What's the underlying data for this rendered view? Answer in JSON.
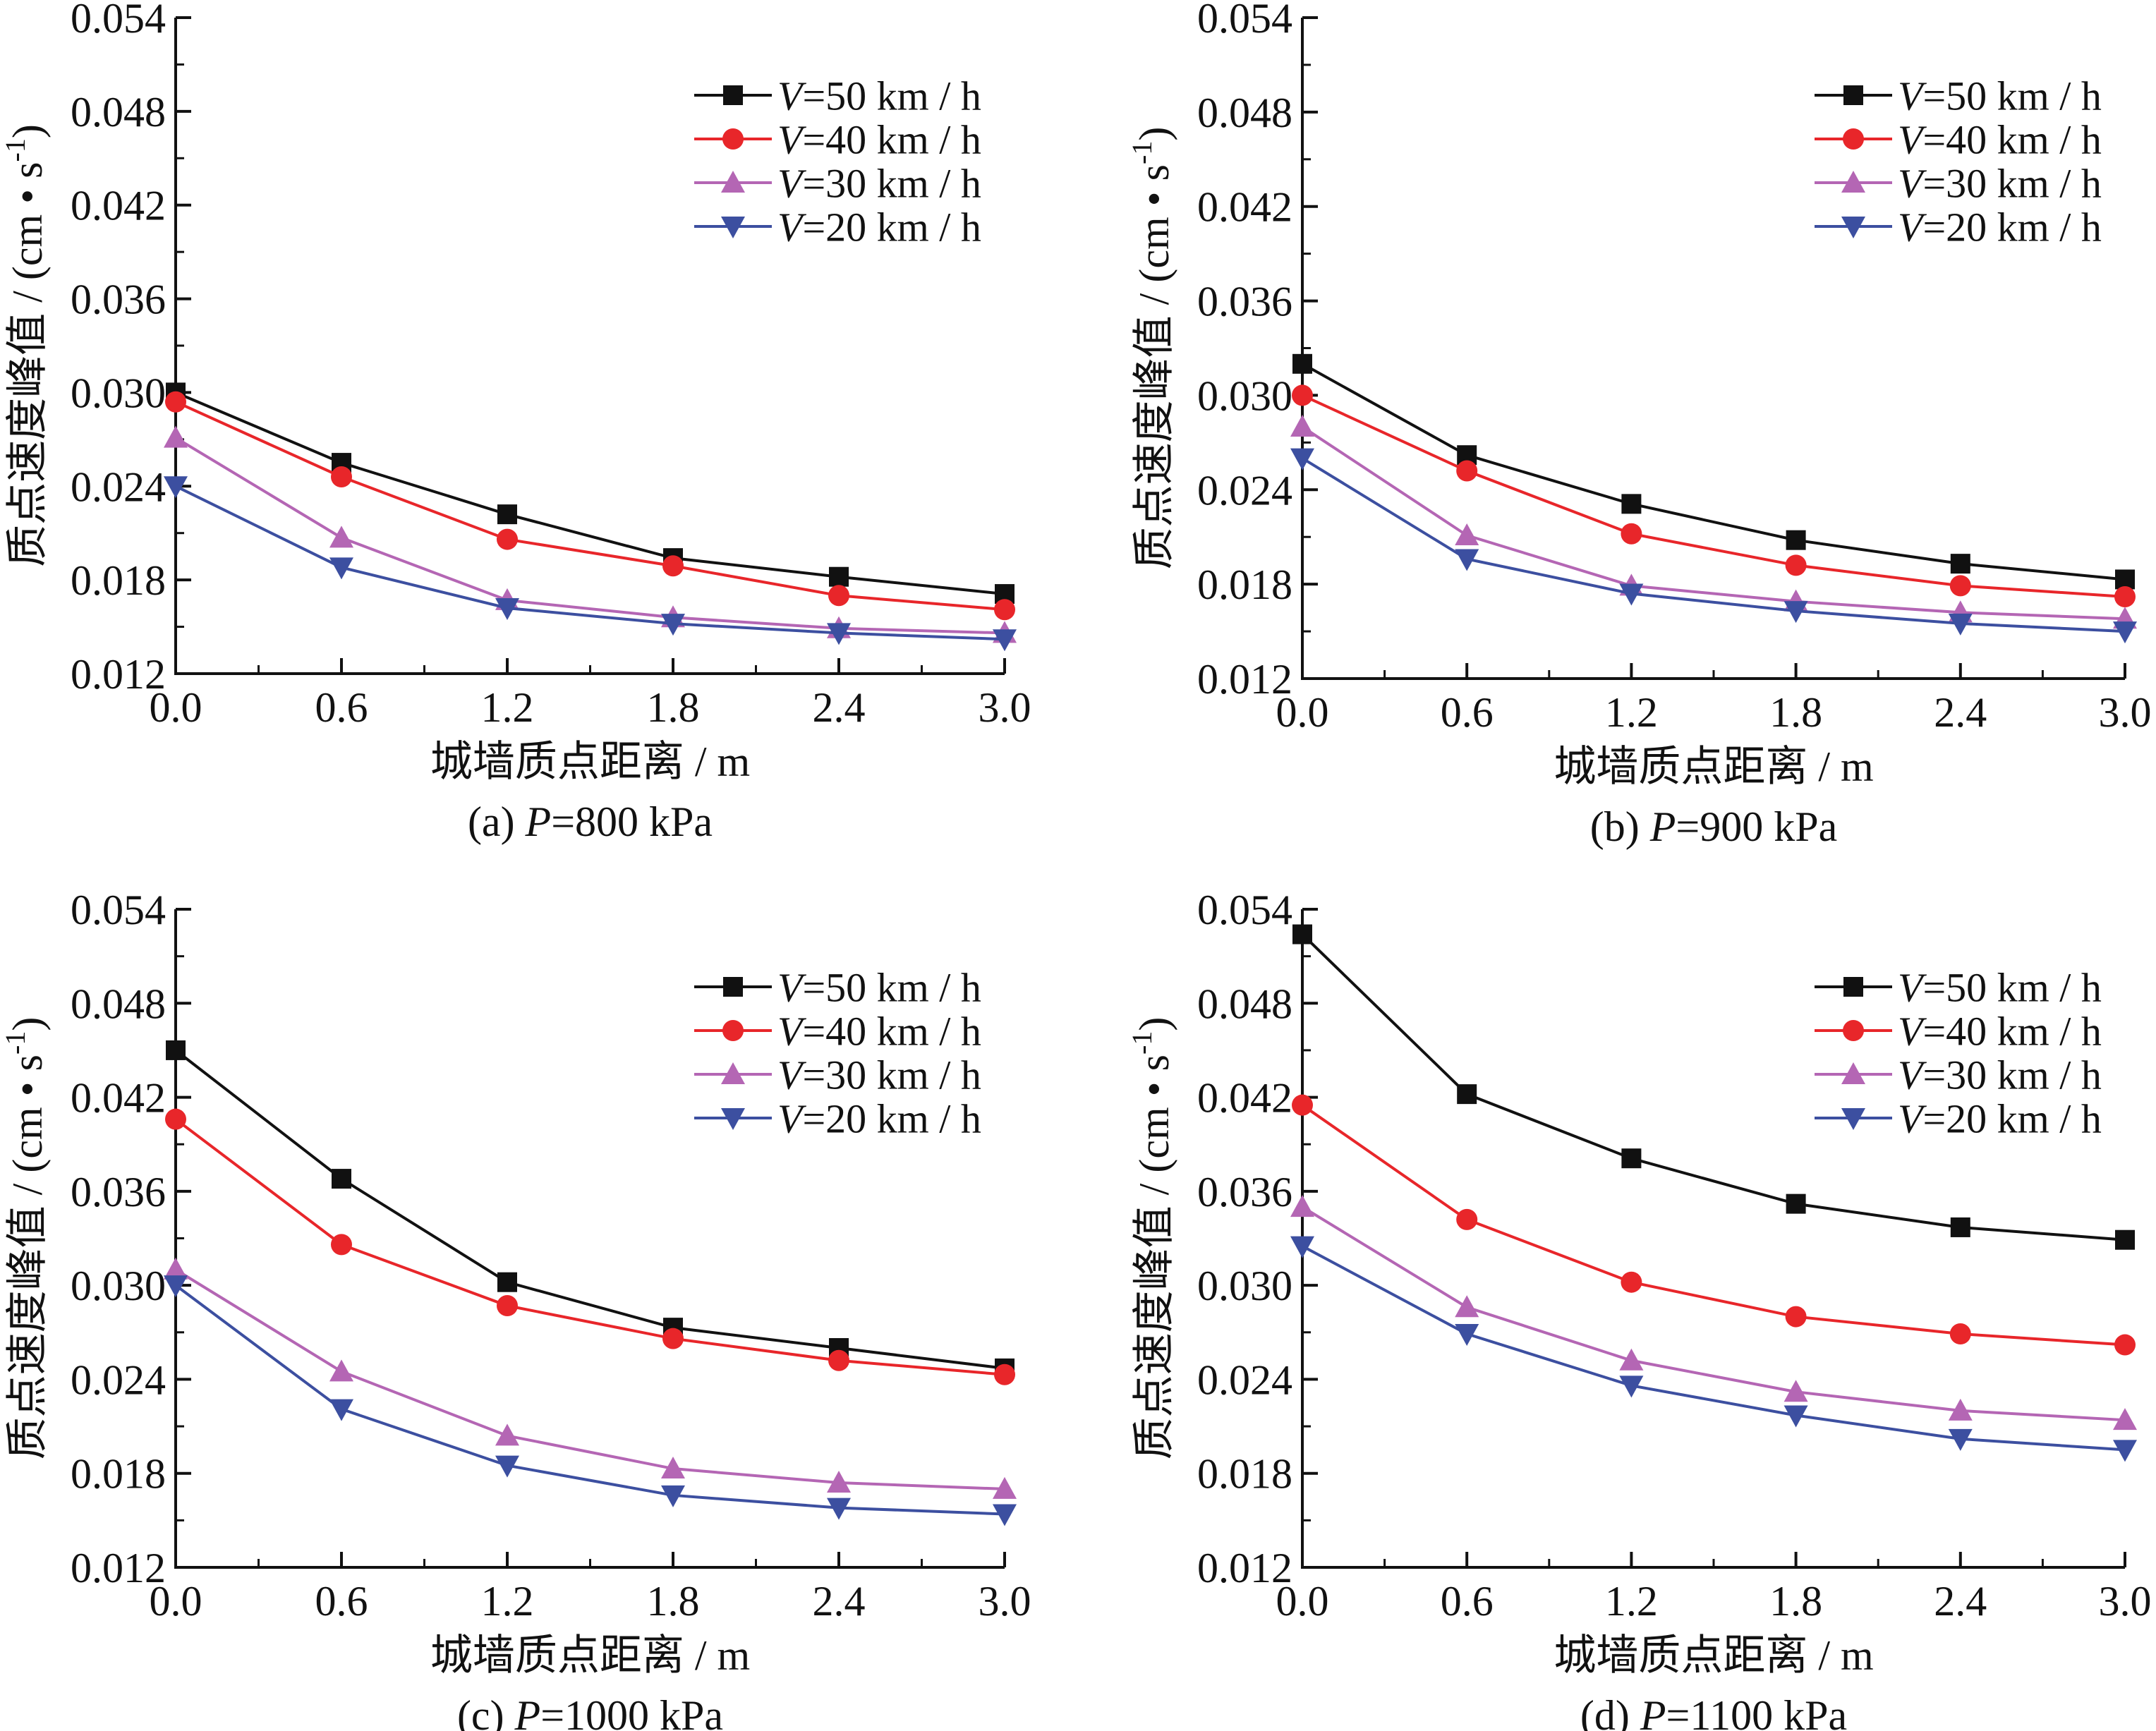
{
  "figure": {
    "background": "#ffffff",
    "axis_color": "#111111"
  },
  "chart_data": [
    {
      "type": "line",
      "title": "",
      "caption": "(a) P=800 kPa",
      "caption_prefix": "(a) ",
      "caption_var": "P",
      "caption_value": "=800 kPa",
      "xlabel": "城墙质点距离 / m",
      "ylabel": "质点速度峰值 / (cm • s⁻¹)",
      "ylabel_main": "质点速度峰值 / (cm • s",
      "ylabel_sup": "-1",
      "ylabel_close": ")",
      "xlim": [
        0,
        3
      ],
      "ylim": [
        0.012,
        0.054
      ],
      "x_ticks": [
        "0.0",
        "0.6",
        "1.2",
        "1.8",
        "2.4",
        "3.0"
      ],
      "y_ticks": [
        "0.012",
        "0.018",
        "0.024",
        "0.030",
        "0.036",
        "0.042",
        "0.048",
        "0.054"
      ],
      "grid": false,
      "legend_position": "top-right",
      "x": [
        0,
        0.6,
        1.2,
        1.8,
        2.4,
        3.0
      ],
      "series": [
        {
          "name": "V=50 km / h",
          "var": "V",
          "rest": "=50 km / h",
          "color": "#111111",
          "marker": "square",
          "values": [
            0.03,
            0.0255,
            0.0222,
            0.0194,
            0.0182,
            0.0171
          ]
        },
        {
          "name": "V=40 km / h",
          "var": "V",
          "rest": "=40 km / h",
          "color": "#e8262a",
          "marker": "circle",
          "values": [
            0.0294,
            0.0246,
            0.0206,
            0.0189,
            0.017,
            0.0161
          ]
        },
        {
          "name": "V=30 km / h",
          "var": "V",
          "rest": "=30 km / h",
          "color": "#b466b4",
          "marker": "triangle-up",
          "values": [
            0.0271,
            0.0207,
            0.0167,
            0.0156,
            0.0149,
            0.0146
          ]
        },
        {
          "name": "V=20 km / h",
          "var": "V",
          "rest": "=20 km / h",
          "color": "#3c4fa0",
          "marker": "triangle-down",
          "values": [
            0.024,
            0.0188,
            0.0162,
            0.0152,
            0.0146,
            0.0142
          ]
        }
      ]
    },
    {
      "type": "line",
      "title": "",
      "caption": "(b) P=900 kPa",
      "caption_prefix": "(b) ",
      "caption_var": "P",
      "caption_value": "=900 kPa",
      "xlabel": "城墙质点距离 / m",
      "ylabel": "质点速度峰值 / (cm • s⁻¹)",
      "ylabel_main": "质点速度峰值 / (cm • s",
      "ylabel_sup": "-1",
      "ylabel_close": ")",
      "xlim": [
        0,
        3
      ],
      "ylim": [
        0.012,
        0.054
      ],
      "x_ticks": [
        "0.0",
        "0.6",
        "1.2",
        "1.8",
        "2.4",
        "3.0"
      ],
      "y_ticks": [
        "0.012",
        "0.018",
        "0.024",
        "0.030",
        "0.036",
        "0.042",
        "0.048",
        "0.054"
      ],
      "grid": false,
      "legend_position": "top-right",
      "x": [
        0,
        0.6,
        1.2,
        1.8,
        2.4,
        3.0
      ],
      "series": [
        {
          "name": "V=50 km / h",
          "var": "V",
          "rest": "=50 km / h",
          "color": "#111111",
          "marker": "square",
          "values": [
            0.032,
            0.0262,
            0.0231,
            0.0208,
            0.0193,
            0.0183
          ]
        },
        {
          "name": "V=40 km / h",
          "var": "V",
          "rest": "=40 km / h",
          "color": "#e8262a",
          "marker": "circle",
          "values": [
            0.03,
            0.0252,
            0.0212,
            0.0192,
            0.0179,
            0.0172
          ]
        },
        {
          "name": "V=30 km / h",
          "var": "V",
          "rest": "=30 km / h",
          "color": "#b466b4",
          "marker": "triangle-up",
          "values": [
            0.028,
            0.0211,
            0.0179,
            0.0169,
            0.0162,
            0.0158
          ]
        },
        {
          "name": "V=20 km / h",
          "var": "V",
          "rest": "=20 km / h",
          "color": "#3c4fa0",
          "marker": "triangle-down",
          "values": [
            0.026,
            0.0196,
            0.0174,
            0.0163,
            0.0155,
            0.015
          ]
        }
      ]
    },
    {
      "type": "line",
      "title": "",
      "caption": "(c) P=1000 kPa",
      "caption_prefix": "(c) ",
      "caption_var": "P",
      "caption_value": "=1000 kPa",
      "xlabel": "城墙质点距离 / m",
      "ylabel": "质点速度峰值 / (cm • s⁻¹)",
      "ylabel_main": "质点速度峰值 / (cm • s",
      "ylabel_sup": "-1",
      "ylabel_close": ")",
      "xlim": [
        0,
        3
      ],
      "ylim": [
        0.012,
        0.054
      ],
      "x_ticks": [
        "0.0",
        "0.6",
        "1.2",
        "1.8",
        "2.4",
        "3.0"
      ],
      "y_ticks": [
        "0.012",
        "0.018",
        "0.024",
        "0.030",
        "0.036",
        "0.042",
        "0.048",
        "0.054"
      ],
      "grid": false,
      "legend_position": "top-right",
      "x": [
        0,
        0.6,
        1.2,
        1.8,
        2.4,
        3.0
      ],
      "series": [
        {
          "name": "V=50 km / h",
          "var": "V",
          "rest": "=50 km / h",
          "color": "#111111",
          "marker": "square",
          "values": [
            0.045,
            0.0368,
            0.0302,
            0.0273,
            0.026,
            0.0247
          ]
        },
        {
          "name": "V=40 km / h",
          "var": "V",
          "rest": "=40 km / h",
          "color": "#e8262a",
          "marker": "circle",
          "values": [
            0.0406,
            0.0326,
            0.0287,
            0.0266,
            0.0252,
            0.0243
          ]
        },
        {
          "name": "V=30 km / h",
          "var": "V",
          "rest": "=30 km / h",
          "color": "#b466b4",
          "marker": "triangle-up",
          "values": [
            0.031,
            0.0245,
            0.0204,
            0.0183,
            0.0174,
            0.017
          ]
        },
        {
          "name": "V=20 km / h",
          "var": "V",
          "rest": "=20 km / h",
          "color": "#3c4fa0",
          "marker": "triangle-down",
          "values": [
            0.03,
            0.0221,
            0.0185,
            0.0166,
            0.0158,
            0.0154
          ]
        }
      ]
    },
    {
      "type": "line",
      "title": "",
      "caption": "(d) P=1100 kPa",
      "caption_prefix": "(d) ",
      "caption_var": "P",
      "caption_value": "=1100 kPa",
      "xlabel": "城墙质点距离 / m",
      "ylabel": "质点速度峰值 / (cm • s⁻¹)",
      "ylabel_main": "质点速度峰值 / (cm • s",
      "ylabel_sup": "-1",
      "ylabel_close": ")",
      "xlim": [
        0,
        3
      ],
      "ylim": [
        0.012,
        0.054
      ],
      "x_ticks": [
        "0.0",
        "0.6",
        "1.2",
        "1.8",
        "2.4",
        "3.0"
      ],
      "y_ticks": [
        "0.012",
        "0.018",
        "0.024",
        "0.030",
        "0.036",
        "0.042",
        "0.048",
        "0.054"
      ],
      "grid": false,
      "legend_position": "top-right",
      "x": [
        0,
        0.6,
        1.2,
        1.8,
        2.4,
        3.0
      ],
      "series": [
        {
          "name": "V=50 km / h",
          "var": "V",
          "rest": "=50 km / h",
          "color": "#111111",
          "marker": "square",
          "values": [
            0.0524,
            0.0422,
            0.0381,
            0.0352,
            0.0337,
            0.0329
          ]
        },
        {
          "name": "V=40 km / h",
          "var": "V",
          "rest": "=40 km / h",
          "color": "#e8262a",
          "marker": "circle",
          "values": [
            0.0415,
            0.0342,
            0.0302,
            0.028,
            0.0269,
            0.0262
          ]
        },
        {
          "name": "V=30 km / h",
          "var": "V",
          "rest": "=30 km / h",
          "color": "#b466b4",
          "marker": "triangle-up",
          "values": [
            0.035,
            0.0286,
            0.0252,
            0.0232,
            0.022,
            0.0214
          ]
        },
        {
          "name": "V=20 km / h",
          "var": "V",
          "rest": "=20 km / h",
          "color": "#3c4fa0",
          "marker": "triangle-down",
          "values": [
            0.0325,
            0.0269,
            0.0236,
            0.0217,
            0.0202,
            0.0195
          ]
        }
      ]
    }
  ]
}
